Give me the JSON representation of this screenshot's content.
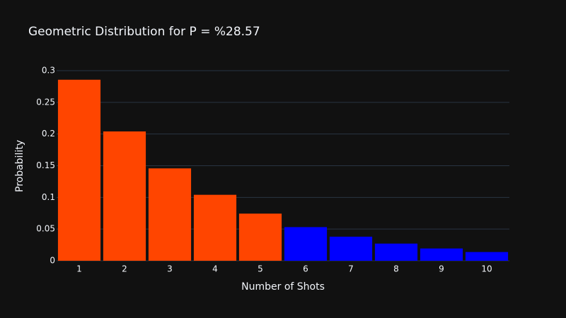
{
  "chart_data": {
    "type": "bar",
    "title": "Geometric Distribution for P = %28.57",
    "x_label": "Number of Shots",
    "y_label": "Probability",
    "x": [
      1,
      2,
      3,
      4,
      5,
      6,
      7,
      8,
      9,
      10
    ],
    "values": [
      0.2857,
      0.2041,
      0.1458,
      0.1041,
      0.0744,
      0.0531,
      0.038,
      0.0271,
      0.0194,
      0.0138
    ],
    "colors": [
      "#ff4500",
      "#ff4500",
      "#ff4500",
      "#ff4500",
      "#ff4500",
      "#0000ff",
      "#0000ff",
      "#0000ff",
      "#0000ff",
      "#0000ff"
    ],
    "xlim": [
      0.5,
      10.5
    ],
    "xticks": [
      1,
      2,
      3,
      4,
      5,
      6,
      7,
      8,
      9,
      10
    ],
    "ylim": [
      0,
      0.3
    ],
    "yticks": [
      0,
      0.05,
      0.1,
      0.15,
      0.2,
      0.25,
      0.3
    ],
    "grid": true
  }
}
